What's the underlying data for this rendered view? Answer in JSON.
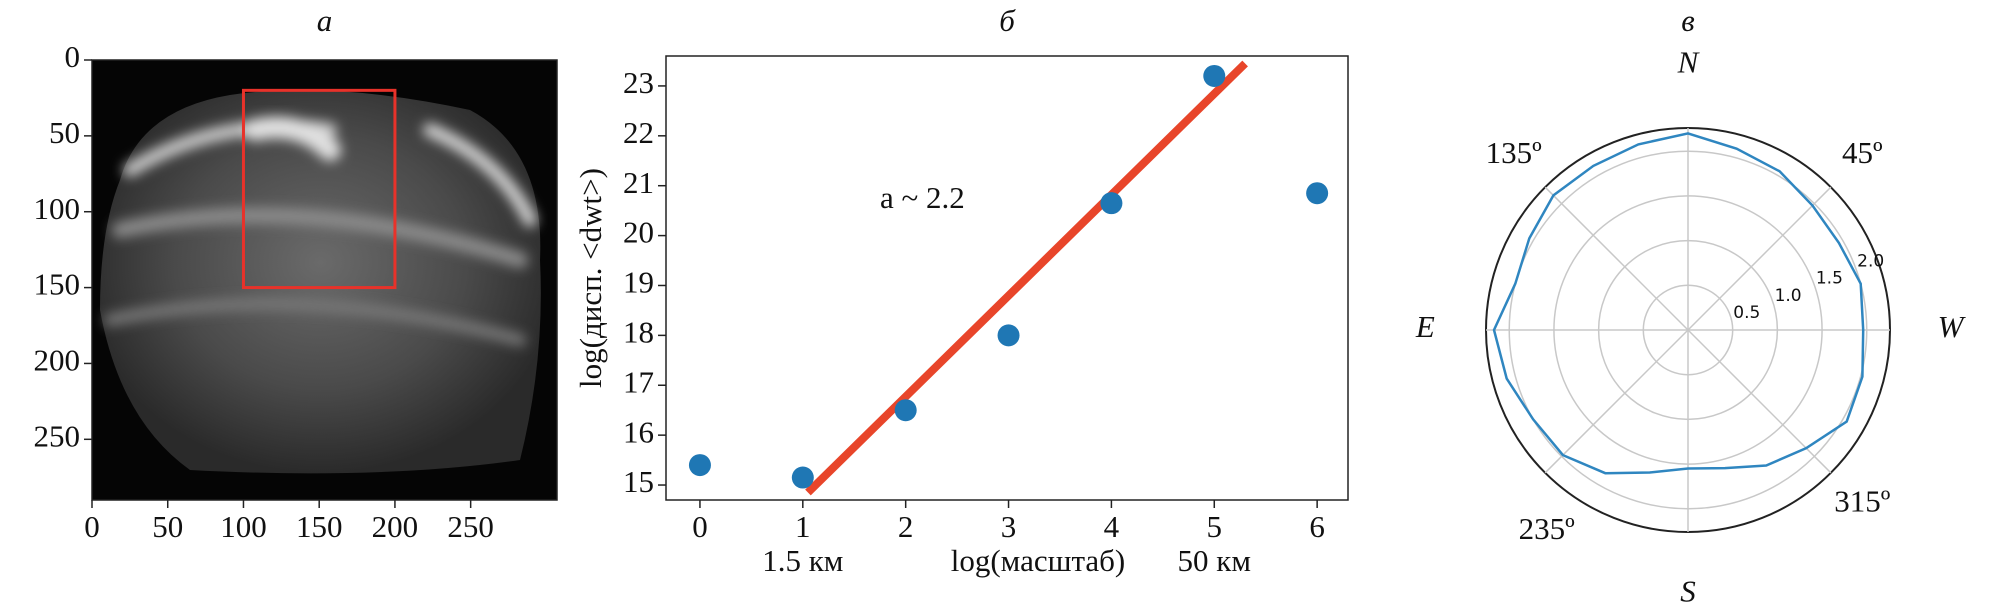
{
  "chart_data": [
    {
      "type": "image",
      "title": "а",
      "xlim": [
        0,
        307
      ],
      "ylim": [
        290,
        0
      ],
      "xticks": [
        0,
        50,
        100,
        150,
        200,
        250
      ],
      "yticks": [
        0,
        50,
        100,
        150,
        200,
        250
      ],
      "rectangle": {
        "x": [
          100,
          200
        ],
        "y": [
          20,
          150
        ],
        "color": "#e8322a"
      }
    },
    {
      "type": "scatter",
      "title": "б",
      "x": [
        0,
        1,
        2,
        3,
        4,
        5,
        6
      ],
      "values": [
        15.4,
        15.15,
        16.5,
        18,
        20.65,
        23.2,
        20.85
      ],
      "color": "#1f77b4",
      "fit_line": {
        "x": [
          1.05,
          5.3
        ],
        "y": [
          14.85,
          23.45
        ],
        "color": "#e8452a"
      },
      "annotation": "a ~ 2.2",
      "xlabel": "log(масштаб)",
      "ylabel": "log(дисп. <dwt>)",
      "xtick_notes": [
        {
          "value": 1,
          "label": "1.5 км"
        },
        {
          "value": 5,
          "label": "50 км"
        }
      ],
      "xlim": [
        -0.33,
        6.3
      ],
      "ylim": [
        14.7,
        23.6
      ],
      "xticks": [
        0,
        1,
        2,
        3,
        4,
        5,
        6
      ],
      "yticks": [
        15,
        16,
        17,
        18,
        19,
        20,
        21,
        22,
        23
      ]
    },
    {
      "type": "polar",
      "title": "в",
      "color": "#2f86c0",
      "theta": [
        0,
        15,
        30,
        45,
        60,
        75,
        90,
        105,
        120,
        135,
        150,
        165,
        180,
        195,
        210,
        225,
        240,
        255,
        270,
        285,
        300,
        315,
        330,
        345
      ],
      "values": [
        1.96,
        2.0,
        1.95,
        1.97,
        2.05,
        2.1,
        2.2,
        2.15,
        2.12,
        2.13,
        2.05,
        2.0,
        2.17,
        2.1,
        2.0,
        1.98,
        1.85,
        1.65,
        1.55,
        1.6,
        1.75,
        1.87,
        2.05,
        2.02
      ],
      "rlim": [
        0,
        2.26
      ],
      "rticks": [
        0.5,
        {
          "value": 1,
          "label": "1.0"
        },
        1.5,
        {
          "value": 2,
          "label": "2.0"
        }
      ],
      "thetagrid": [
        0,
        45,
        90,
        135,
        180,
        225,
        270,
        315
      ],
      "thetaticks": [
        {
          "value": 45,
          "label": "45º"
        },
        {
          "value": 135,
          "label": "135º"
        },
        {
          "value": 235,
          "label": "235º"
        },
        {
          "value": 315,
          "label": "315º"
        }
      ],
      "direction_labels": {
        "top": "N",
        "left": "E",
        "right": "W",
        "bottom": "S"
      }
    }
  ]
}
